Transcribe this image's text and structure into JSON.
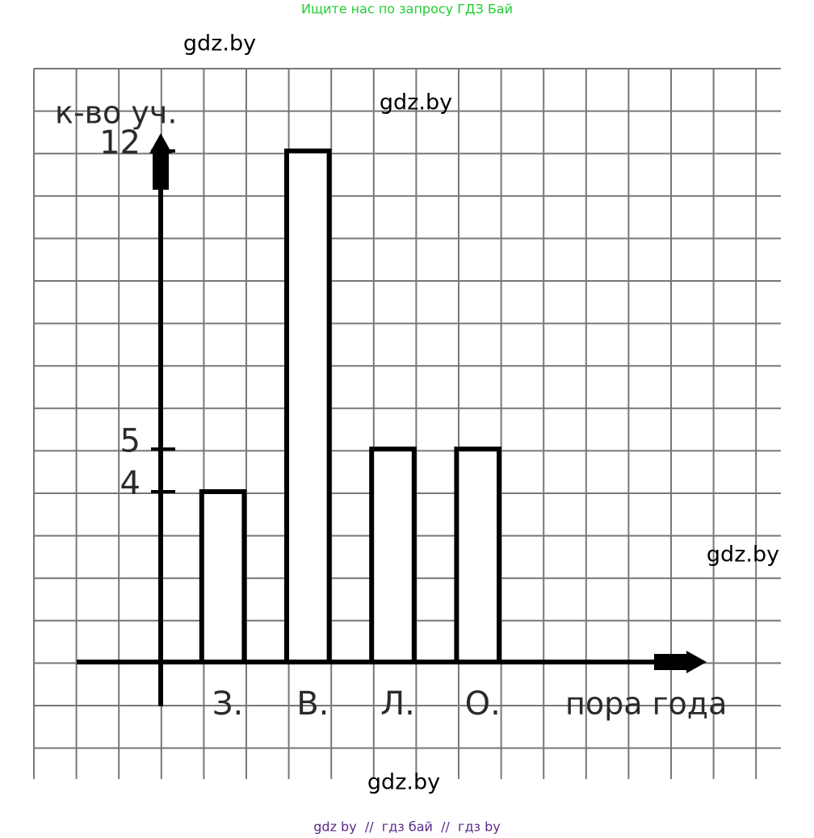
{
  "header": "Ищите нас по запросу ГДЗ Бай",
  "watermarks": [
    "gdz.by",
    "gdz.by",
    "gdz.by",
    "gdz.by"
  ],
  "footer": "gdz by  //  гдз бай  //  гдз by",
  "chart_data": {
    "type": "bar",
    "y_label": "к-во уч.",
    "x_label": "пора года",
    "categories": [
      "З.",
      "В.",
      "Л.",
      "О."
    ],
    "values": [
      4,
      12,
      5,
      5
    ],
    "color": "#ffffff",
    "ylim": [
      0,
      12
    ],
    "yticks": [
      4,
      5,
      12
    ]
  }
}
